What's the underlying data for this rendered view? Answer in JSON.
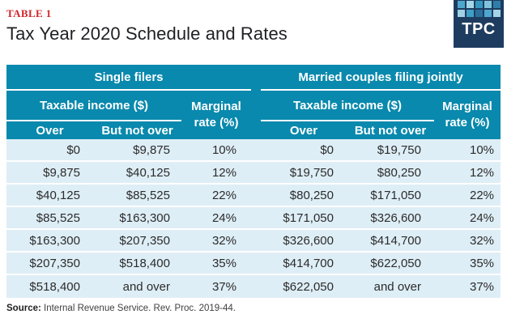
{
  "header": {
    "table_label": "TABLE 1",
    "title": "Tax Year 2020 Schedule and Rates"
  },
  "logo": {
    "text": "TPC",
    "background": "#1e3c60",
    "grid_colors": [
      "#4ea7cd",
      "#a3d6e8",
      "#3596bf",
      "#7fc2db",
      "#2e7fa8",
      "#9fd2e5",
      "#3d9ec6",
      "#2b6f9b",
      "#4ea7cd",
      "#a3d6e8"
    ]
  },
  "colors": {
    "header_teal": "#0989ad",
    "row_blue": "#deeef6",
    "label_red": "#d2232a",
    "logo_navy": "#1e3c60"
  },
  "chart_data": {
    "type": "table",
    "title": "Tax Year 2020 Schedule and Rates",
    "column_groups": [
      "Single filers",
      "Married couples filing jointly"
    ],
    "taxable_income_label": "Taxable income ($)",
    "columns": [
      "Over",
      "But not over",
      "Marginal rate (%)",
      "Over",
      "But not over",
      "Marginal rate (%)"
    ],
    "rows": [
      [
        "$0",
        "$9,875",
        "10%",
        "$0",
        "$19,750",
        "10%"
      ],
      [
        "$9,875",
        "$40,125",
        "12%",
        "$19,750",
        "$80,250",
        "12%"
      ],
      [
        "$40,125",
        "$85,525",
        "22%",
        "$80,250",
        "$171,050",
        "22%"
      ],
      [
        "$85,525",
        "$163,300",
        "24%",
        "$171,050",
        "$326,600",
        "24%"
      ],
      [
        "$163,300",
        "$207,350",
        "32%",
        "$326,600",
        "$414,700",
        "32%"
      ],
      [
        "$207,350",
        "$518,400",
        "35%",
        "$414,700",
        "$622,050",
        "35%"
      ],
      [
        "$518,400",
        "and over",
        "37%",
        "$622,050",
        "and over",
        "37%"
      ]
    ]
  },
  "footer": {
    "source_label": "Source:",
    "source_text": " Internal Revenue Service. Rev. Proc. 2019-44."
  }
}
